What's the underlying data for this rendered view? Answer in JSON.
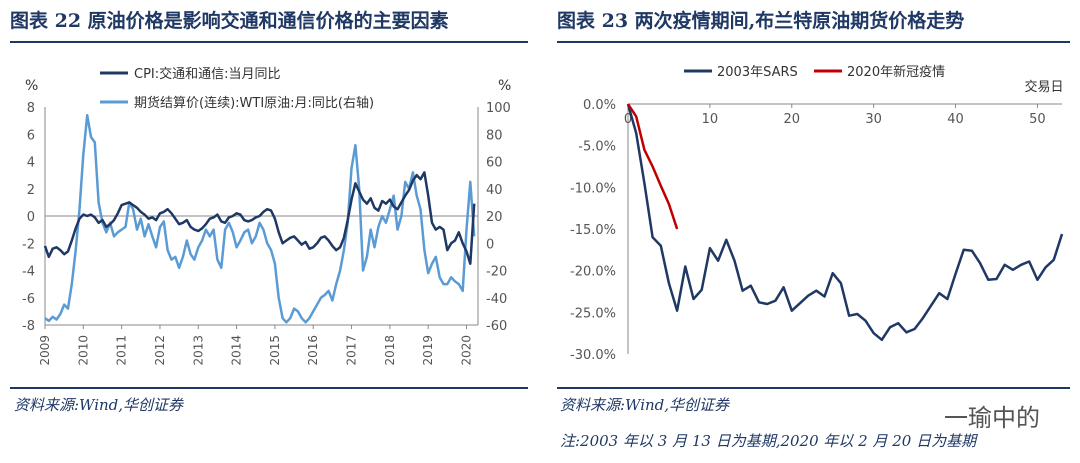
{
  "left": {
    "title": "图表 22 原油价格是影响交通和通信价格的主要因素",
    "source": "资料来源:Wind,华创证券"
  },
  "right": {
    "title": "图表 23 两次疫情期间,布兰特原油期货价格走势",
    "source": "资料来源:Wind,华创证券",
    "note": "注:2003 年以 3 月 13 日为基期,2020 年以 2 月 20 日为基期"
  },
  "watermark": "一瑜中的",
  "colors": {
    "dark": "#1f3864",
    "light": "#5b9bd5",
    "red": "#c00000"
  },
  "chart_data": [
    {
      "type": "line",
      "left_axis_unit": "%",
      "right_axis_unit": "%",
      "ylim": [
        -8,
        8
      ],
      "y_ticks": [
        8,
        6,
        4,
        2,
        0,
        -2,
        -4,
        -6,
        -8
      ],
      "y2lim": [
        -60,
        100
      ],
      "y2_ticks": [
        100,
        80,
        60,
        40,
        20,
        0,
        -20,
        -40,
        -60
      ],
      "x_ticks": [
        "2009",
        "2010",
        "2011",
        "2012",
        "2013",
        "2014",
        "2015",
        "2016",
        "2017",
        "2018",
        "2019",
        "2020"
      ],
      "x_start": 2009.0,
      "x_end": 2020.3,
      "series": [
        {
          "name": "CPI:交通和通信:当月同比",
          "axis": "left",
          "x": [
            2009.0,
            2009.1,
            2009.2,
            2009.3,
            2009.4,
            2009.5,
            2009.6,
            2009.7,
            2009.8,
            2009.9,
            2010.0,
            2010.1,
            2010.2,
            2010.3,
            2010.4,
            2010.5,
            2010.6,
            2010.7,
            2010.8,
            2010.9,
            2011.0,
            2011.1,
            2011.2,
            2011.3,
            2011.4,
            2011.5,
            2011.6,
            2011.7,
            2011.8,
            2011.9,
            2012.0,
            2012.1,
            2012.2,
            2012.3,
            2012.4,
            2012.5,
            2012.6,
            2012.7,
            2012.8,
            2012.9,
            2013.0,
            2013.1,
            2013.2,
            2013.3,
            2013.4,
            2013.5,
            2013.6,
            2013.7,
            2013.8,
            2013.9,
            2014.0,
            2014.1,
            2014.2,
            2014.3,
            2014.4,
            2014.5,
            2014.6,
            2014.7,
            2014.8,
            2014.9,
            2015.0,
            2015.1,
            2015.2,
            2015.3,
            2015.4,
            2015.5,
            2015.6,
            2015.7,
            2015.8,
            2015.9,
            2016.0,
            2016.1,
            2016.2,
            2016.3,
            2016.4,
            2016.5,
            2016.6,
            2016.7,
            2016.8,
            2016.9,
            2017.0,
            2017.1,
            2017.2,
            2017.3,
            2017.4,
            2017.5,
            2017.6,
            2017.7,
            2017.8,
            2017.9,
            2018.0,
            2018.1,
            2018.2,
            2018.3,
            2018.4,
            2018.5,
            2018.6,
            2018.7,
            2018.8,
            2018.9,
            2019.0,
            2019.1,
            2019.2,
            2019.3,
            2019.4,
            2019.5,
            2019.6,
            2019.7,
            2019.8,
            2019.9,
            2020.0,
            2020.1,
            2020.2
          ],
          "values": [
            -2.2,
            -3.0,
            -2.4,
            -2.3,
            -2.5,
            -2.8,
            -2.6,
            -1.8,
            -0.9,
            -0.2,
            0.1,
            0.0,
            0.1,
            -0.1,
            -0.5,
            -0.3,
            -0.8,
            -0.6,
            -0.3,
            0.2,
            0.8,
            0.9,
            1.0,
            0.8,
            0.6,
            0.3,
            0.1,
            -0.2,
            -0.1,
            -0.3,
            0.2,
            0.3,
            0.5,
            0.2,
            -0.2,
            -0.6,
            -0.5,
            -0.3,
            -0.8,
            -1.0,
            -1.1,
            -0.9,
            -0.6,
            -0.2,
            -0.1,
            0.1,
            -0.4,
            -0.5,
            -0.1,
            0.0,
            0.2,
            0.1,
            -0.3,
            -0.4,
            -0.3,
            -0.1,
            0.0,
            0.3,
            0.5,
            0.4,
            -0.2,
            -1.2,
            -2.0,
            -1.8,
            -1.6,
            -1.5,
            -1.8,
            -2.1,
            -1.9,
            -2.4,
            -2.3,
            -2.0,
            -1.6,
            -1.5,
            -1.8,
            -2.2,
            -2.5,
            -2.3,
            -1.6,
            -0.3,
            1.2,
            2.4,
            1.8,
            1.2,
            0.9,
            1.3,
            0.6,
            0.4,
            1.1,
            0.9,
            1.2,
            0.7,
            0.5,
            1.0,
            1.5,
            1.9,
            2.6,
            3.0,
            2.7,
            3.2,
            1.5,
            -0.5,
            -1.0,
            -0.8,
            -1.0,
            -2.5,
            -2.0,
            -1.8,
            -1.2,
            -2.0,
            -2.6,
            -3.5,
            0.9
          ]
        },
        {
          "name": "期货结算价(连续):WTI原油:月:同比(右轴)",
          "axis": "right",
          "x": [
            2009.0,
            2009.1,
            2009.2,
            2009.3,
            2009.4,
            2009.5,
            2009.6,
            2009.7,
            2009.8,
            2009.9,
            2010.0,
            2010.1,
            2010.2,
            2010.3,
            2010.4,
            2010.5,
            2010.6,
            2010.7,
            2010.8,
            2010.9,
            2011.0,
            2011.1,
            2011.2,
            2011.3,
            2011.4,
            2011.5,
            2011.6,
            2011.7,
            2011.8,
            2011.9,
            2012.0,
            2012.1,
            2012.2,
            2012.3,
            2012.4,
            2012.5,
            2012.6,
            2012.7,
            2012.8,
            2012.9,
            2013.0,
            2013.1,
            2013.2,
            2013.3,
            2013.4,
            2013.5,
            2013.6,
            2013.7,
            2013.8,
            2013.9,
            2014.0,
            2014.1,
            2014.2,
            2014.3,
            2014.4,
            2014.5,
            2014.6,
            2014.7,
            2014.8,
            2014.9,
            2015.0,
            2015.1,
            2015.2,
            2015.3,
            2015.4,
            2015.5,
            2015.6,
            2015.7,
            2015.8,
            2015.9,
            2016.0,
            2016.1,
            2016.2,
            2016.3,
            2016.4,
            2016.5,
            2016.6,
            2016.7,
            2016.8,
            2016.9,
            2017.0,
            2017.1,
            2017.2,
            2017.3,
            2017.4,
            2017.5,
            2017.6,
            2017.7,
            2017.8,
            2017.9,
            2018.0,
            2018.1,
            2018.2,
            2018.3,
            2018.4,
            2018.5,
            2018.6,
            2018.7,
            2018.8,
            2018.9,
            2019.0,
            2019.1,
            2019.2,
            2019.3,
            2019.4,
            2019.5,
            2019.6,
            2019.7,
            2019.8,
            2019.9,
            2020.0,
            2020.1,
            2020.2
          ],
          "values": [
            -55,
            -57,
            -54,
            -56,
            -52,
            -45,
            -48,
            -30,
            -5,
            25,
            65,
            94,
            78,
            74,
            30,
            15,
            8,
            15,
            5,
            8,
            10,
            12,
            30,
            25,
            10,
            18,
            5,
            14,
            5,
            -3,
            12,
            16,
            -5,
            -12,
            -10,
            -18,
            -10,
            2,
            -8,
            -12,
            -3,
            2,
            10,
            5,
            10,
            -12,
            -18,
            10,
            15,
            8,
            -3,
            2,
            8,
            10,
            0,
            5,
            15,
            10,
            0,
            -5,
            -15,
            -40,
            -55,
            -58,
            -55,
            -48,
            -50,
            -55,
            -58,
            -55,
            -50,
            -45,
            -40,
            -38,
            -35,
            -42,
            -30,
            -20,
            -5,
            15,
            55,
            72,
            40,
            -20,
            -10,
            10,
            -3,
            12,
            20,
            15,
            25,
            35,
            10,
            20,
            45,
            40,
            52,
            35,
            25,
            -5,
            -22,
            -15,
            -10,
            -25,
            -30,
            -30,
            -25,
            -28,
            -30,
            -35,
            10,
            45,
            5
          ]
        }
      ]
    },
    {
      "type": "line",
      "xlabel": "交易日",
      "xlim": [
        0,
        53
      ],
      "x_ticks": [
        0,
        10,
        20,
        30,
        40,
        50
      ],
      "ylim": [
        -30,
        0
      ],
      "y_ticks": [
        "0.0%",
        "-5.0%",
        "-10.0%",
        "-15.0%",
        "-20.0%",
        "-25.0%",
        "-30.0%"
      ],
      "legend": "top",
      "series": [
        {
          "name": "2003年SARS",
          "x": [
            0,
            1,
            2,
            3,
            4,
            5,
            6,
            7,
            8,
            9,
            10,
            11,
            12,
            13,
            14,
            15,
            16,
            17,
            18,
            19,
            20,
            21,
            22,
            23,
            24,
            25,
            26,
            27,
            28,
            29,
            30,
            31,
            32,
            33,
            34,
            35,
            36,
            37,
            38,
            39,
            40,
            41,
            42,
            43,
            44,
            45,
            46,
            47,
            48,
            49,
            50,
            51,
            52,
            53
          ],
          "values": [
            0,
            -3.5,
            -9.5,
            -16.0,
            -17.0,
            -21.5,
            -24.8,
            -19.5,
            -23.4,
            -22.3,
            -17.3,
            -18.8,
            -16.3,
            -18.8,
            -22.4,
            -21.8,
            -23.8,
            -24.0,
            -23.6,
            -22.0,
            -24.8,
            -23.9,
            -23.0,
            -22.4,
            -23.1,
            -20.3,
            -21.5,
            -25.4,
            -25.2,
            -26.0,
            -27.5,
            -28.3,
            -26.8,
            -26.3,
            -27.4,
            -27.0,
            -25.7,
            -24.2,
            -22.7,
            -23.4,
            -20.4,
            -17.5,
            -17.6,
            -19.1,
            -21.1,
            -21.0,
            -19.3,
            -19.9,
            -19.3,
            -18.9,
            -21.1,
            -19.6,
            -18.7,
            -15.6
          ]
        },
        {
          "name": "2020年新冠疫情",
          "x": [
            0,
            1,
            2,
            3,
            4,
            5,
            6
          ],
          "values": [
            0,
            -1.5,
            -5.5,
            -7.5,
            -9.8,
            -12.0,
            -15.0
          ]
        }
      ]
    }
  ]
}
